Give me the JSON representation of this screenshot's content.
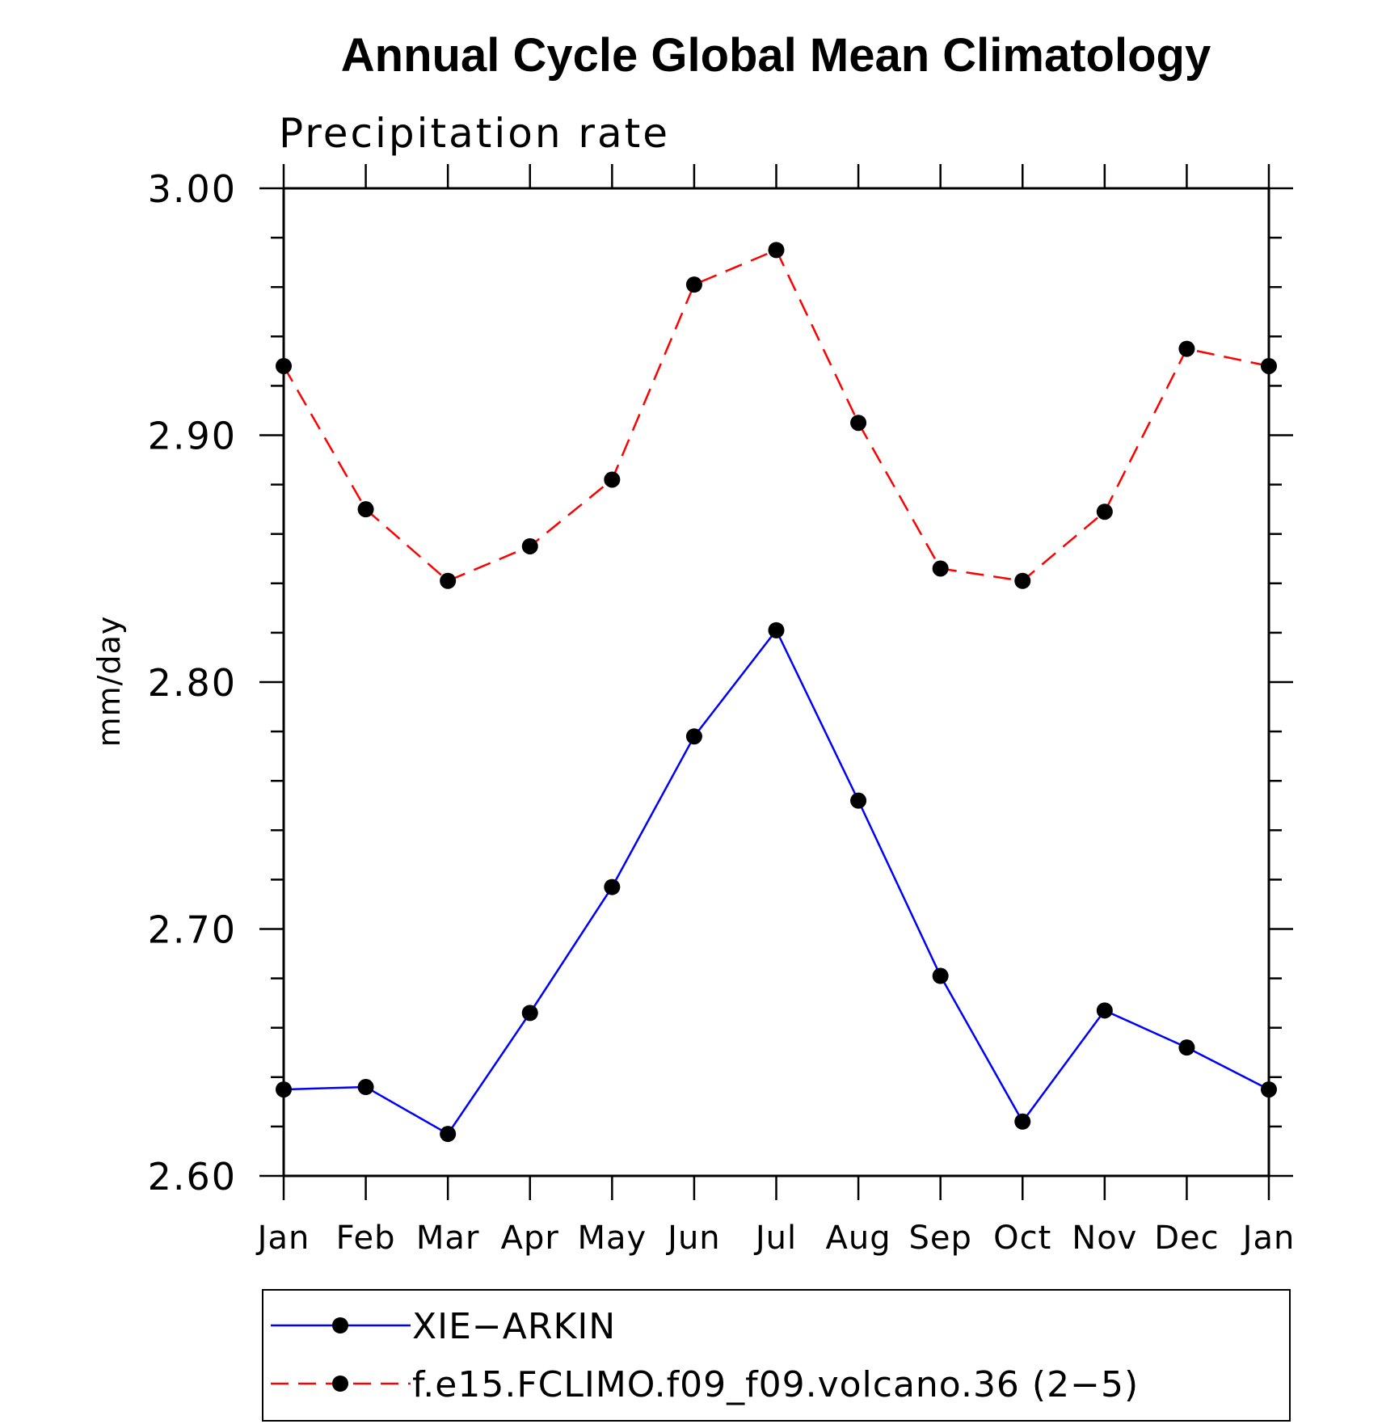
{
  "chart_data": {
    "type": "line",
    "title": "Annual Cycle Global Mean Climatology",
    "subtitle": "Precipitation rate",
    "xlabel": "",
    "ylabel": "mm/day",
    "categories": [
      "Jan",
      "Feb",
      "Mar",
      "Apr",
      "May",
      "Jun",
      "Jul",
      "Aug",
      "Sep",
      "Oct",
      "Nov",
      "Dec",
      "Jan"
    ],
    "ylim": [
      2.6,
      3.0
    ],
    "yticks": [
      "2.60",
      "2.70",
      "2.80",
      "2.90",
      "3.00"
    ],
    "grid": false,
    "legend_position": "bottom",
    "series": [
      {
        "name": "XIE−ARKIN",
        "color": "#0000ff",
        "line_style": "solid",
        "marker": "filled-circle",
        "values": [
          2.635,
          2.636,
          2.617,
          2.666,
          2.717,
          2.778,
          2.821,
          2.752,
          2.681,
          2.622,
          2.667,
          2.652,
          2.635
        ]
      },
      {
        "name": "f.e15.FCLIMO.f09_f09.volcano.36 (2−5)",
        "color": "#ff0000",
        "line_style": "dashed",
        "marker": "filled-circle",
        "values": [
          2.928,
          2.87,
          2.841,
          2.855,
          2.882,
          2.961,
          2.975,
          2.905,
          2.846,
          2.841,
          2.869,
          2.935,
          2.928
        ]
      }
    ]
  }
}
